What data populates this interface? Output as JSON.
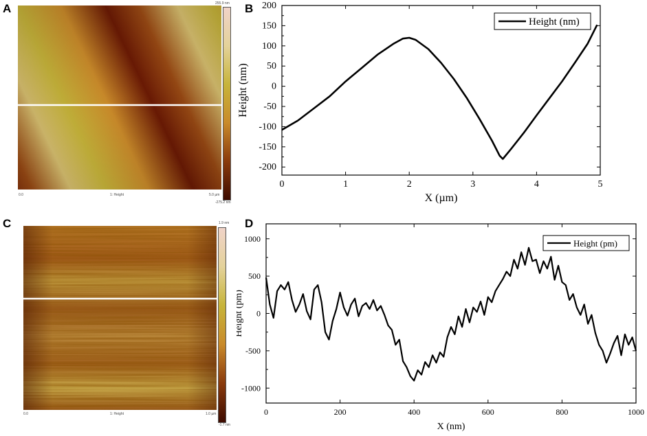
{
  "panels": {
    "a": {
      "letter": "A",
      "scale_top": "255.9 nm",
      "scale_bottom": "-275.2 nm",
      "caption_left": "0.0",
      "caption_center": "1: Height",
      "caption_right": "5.0 µm",
      "colormap": [
        "#3d0b00",
        "#8a3a0c",
        "#c98a2a",
        "#c7b43a",
        "#e4d29a",
        "#f0d3c8"
      ]
    },
    "c": {
      "letter": "C",
      "scale_top": "1.9 nm",
      "scale_bottom": "-1.7 nm",
      "caption_left": "0.0",
      "caption_center": "1: Height",
      "caption_right": "1.0 µm",
      "colormap": [
        "#3d0b00",
        "#8a3a0c",
        "#c98a2a",
        "#c7b43a",
        "#e4d29a",
        "#f0d3c8"
      ]
    },
    "b": {
      "letter": "B"
    },
    "d": {
      "letter": "D"
    }
  },
  "chart_data": [
    {
      "id": "B",
      "type": "line",
      "title": "",
      "xlabel": "X (µm)",
      "ylabel": "Height (nm)",
      "xlim": [
        0,
        5
      ],
      "ylim": [
        -220,
        200
      ],
      "xticks": [
        0,
        1,
        2,
        3,
        4,
        5
      ],
      "yticks": [
        -200,
        -150,
        -100,
        -50,
        0,
        50,
        100,
        150,
        200
      ],
      "legend": "top-right",
      "series": [
        {
          "name": "Height (nm)",
          "color": "#000000",
          "x": [
            0,
            0.25,
            0.5,
            0.75,
            1.0,
            1.25,
            1.5,
            1.75,
            1.9,
            2.0,
            2.1,
            2.3,
            2.5,
            2.7,
            2.9,
            3.1,
            3.3,
            3.42,
            3.47,
            3.6,
            3.8,
            4.0,
            4.2,
            4.4,
            4.6,
            4.8,
            4.95
          ],
          "y": [
            -108,
            -85,
            -55,
            -25,
            12,
            45,
            78,
            105,
            118,
            120,
            115,
            92,
            58,
            18,
            -28,
            -80,
            -135,
            -172,
            -180,
            -155,
            -115,
            -72,
            -30,
            12,
            58,
            105,
            152
          ]
        }
      ]
    },
    {
      "id": "D",
      "type": "line",
      "title": "",
      "xlabel": "X (nm)",
      "ylabel": "Height (pm)",
      "xlim": [
        0,
        1000
      ],
      "ylim": [
        -1200,
        1200
      ],
      "xticks": [
        0,
        200,
        400,
        600,
        800,
        1000
      ],
      "yticks": [
        -1000,
        -500,
        0,
        500,
        1000
      ],
      "legend": "top-right",
      "series": [
        {
          "name": "Height (pm)",
          "color": "#000000",
          "x": [
            0,
            10,
            20,
            30,
            40,
            50,
            60,
            70,
            80,
            90,
            100,
            110,
            120,
            130,
            140,
            150,
            160,
            170,
            180,
            190,
            200,
            210,
            220,
            230,
            240,
            250,
            260,
            270,
            280,
            290,
            300,
            310,
            320,
            330,
            340,
            350,
            360,
            370,
            380,
            390,
            400,
            410,
            420,
            430,
            440,
            450,
            460,
            470,
            480,
            490,
            500,
            510,
            520,
            530,
            540,
            550,
            560,
            570,
            580,
            590,
            600,
            610,
            620,
            630,
            640,
            650,
            660,
            670,
            680,
            690,
            700,
            710,
            720,
            730,
            740,
            750,
            760,
            770,
            780,
            790,
            800,
            810,
            820,
            830,
            840,
            850,
            860,
            870,
            880,
            890,
            900,
            910,
            920,
            930,
            940,
            950,
            960,
            970,
            980,
            990,
            1000
          ],
          "y": [
            480,
            120,
            -60,
            300,
            380,
            320,
            420,
            180,
            20,
            120,
            260,
            30,
            -80,
            320,
            380,
            150,
            -250,
            -350,
            -100,
            60,
            280,
            80,
            -30,
            120,
            200,
            -40,
            100,
            140,
            60,
            180,
            40,
            100,
            -20,
            -160,
            -220,
            -420,
            -350,
            -640,
            -720,
            -840,
            -900,
            -760,
            -820,
            -650,
            -720,
            -560,
            -660,
            -520,
            -580,
            -320,
            -180,
            -280,
            -40,
            -180,
            60,
            -120,
            80,
            20,
            160,
            -20,
            220,
            150,
            300,
            380,
            460,
            560,
            500,
            720,
            600,
            820,
            650,
            880,
            700,
            720,
            540,
            700,
            600,
            760,
            450,
            640,
            420,
            380,
            180,
            260,
            80,
            -20,
            120,
            -140,
            -20,
            -260,
            -420,
            -500,
            -660,
            -540,
            -400,
            -300,
            -560,
            -280,
            -420,
            -320,
            -500
          ]
        }
      ]
    }
  ]
}
